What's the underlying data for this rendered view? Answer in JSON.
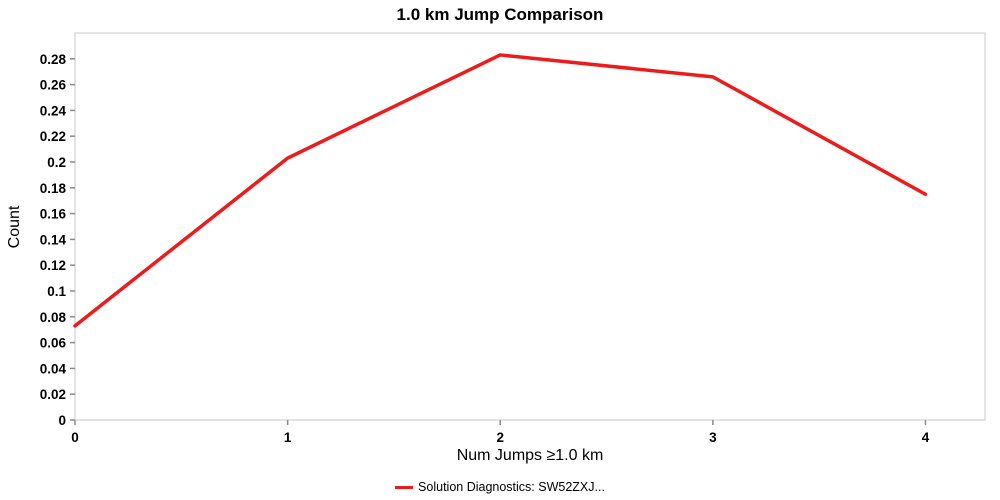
{
  "chart_data": {
    "type": "line",
    "title": "1.0 km Jump Comparison",
    "xlabel": "Num Jumps ≥1.0 km",
    "ylabel": "Count",
    "x": [
      0,
      1,
      2,
      3,
      4
    ],
    "series": [
      {
        "name": "Solution Diagnostics: SW52ZXJ...",
        "color": "#ed1c1c",
        "values": [
          0.073,
          0.203,
          0.283,
          0.266,
          0.175
        ]
      }
    ],
    "x_ticks": [
      0,
      1,
      2,
      3,
      4
    ],
    "y_ticks": [
      0,
      0.02,
      0.04,
      0.06,
      0.08,
      0.1,
      0.12,
      0.14,
      0.16,
      0.18,
      0.2,
      0.22,
      0.24,
      0.26,
      0.28
    ],
    "xlim": [
      0,
      4.28
    ],
    "ylim": [
      0,
      0.3
    ],
    "grid": false,
    "legend_position": "bottom",
    "frame_color": "#c9c9c9",
    "tick_color": "#8a8a8a",
    "text_color": "#000000"
  }
}
